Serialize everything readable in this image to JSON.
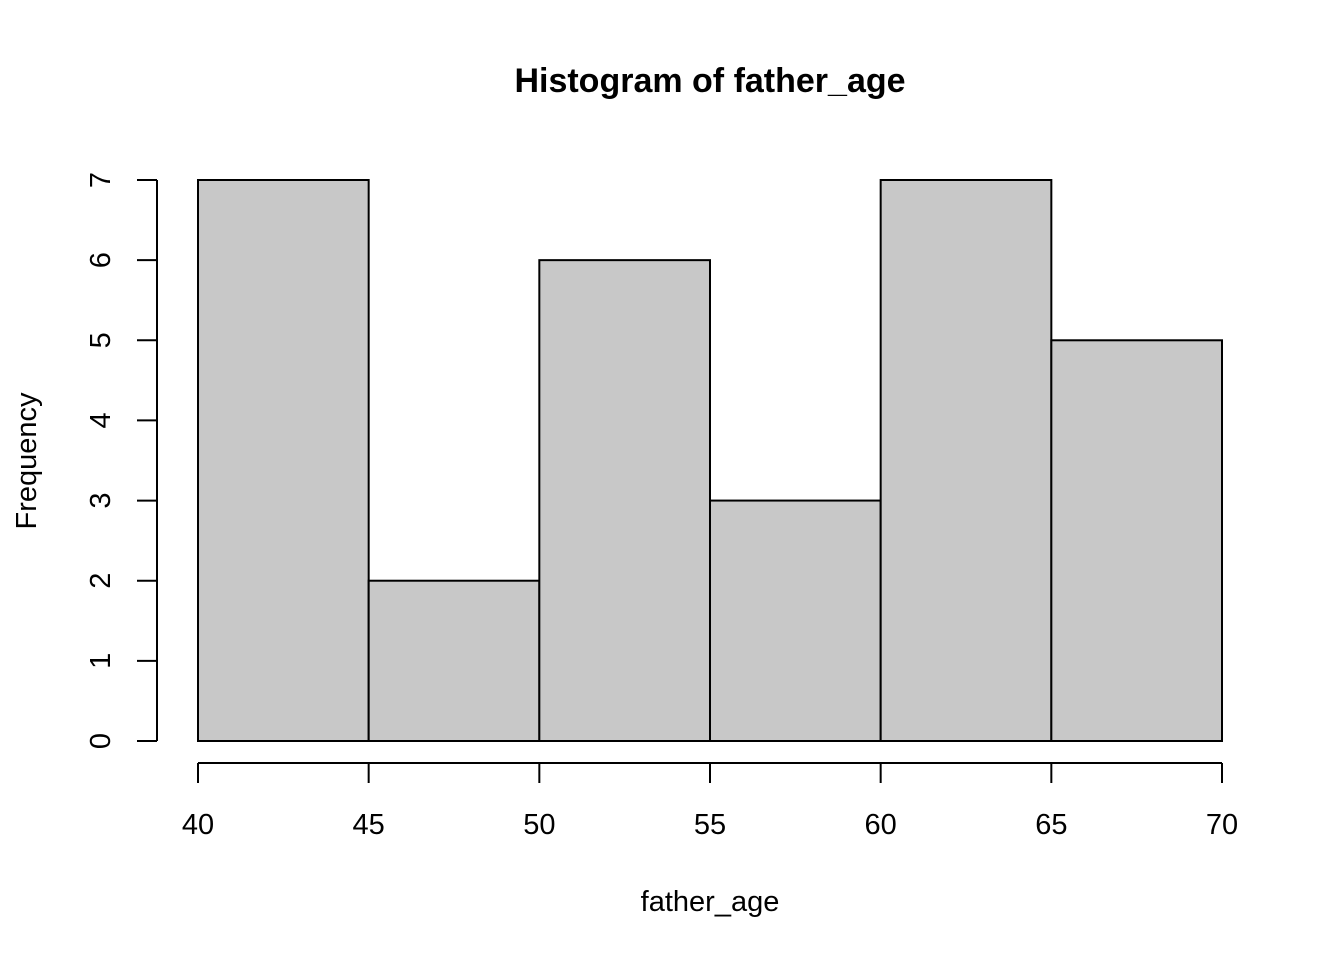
{
  "chart_data": {
    "type": "bar",
    "title": "Histogram of father_age",
    "xlabel": "father_age",
    "ylabel": "Frequency",
    "bins": [
      {
        "start": 40,
        "end": 45,
        "count": 7
      },
      {
        "start": 45,
        "end": 50,
        "count": 2
      },
      {
        "start": 50,
        "end": 55,
        "count": 6
      },
      {
        "start": 55,
        "end": 60,
        "count": 3
      },
      {
        "start": 60,
        "end": 65,
        "count": 7
      },
      {
        "start": 65,
        "end": 70,
        "count": 5
      }
    ],
    "xlim": [
      40,
      70
    ],
    "ylim": [
      0,
      7
    ],
    "x_ticks": [
      40,
      45,
      50,
      55,
      60,
      65,
      70
    ],
    "y_ticks": [
      0,
      1,
      2,
      3,
      4,
      5,
      6,
      7
    ],
    "grid": false,
    "bar_color": "#c8c8c8",
    "edge_color": "#000000"
  }
}
